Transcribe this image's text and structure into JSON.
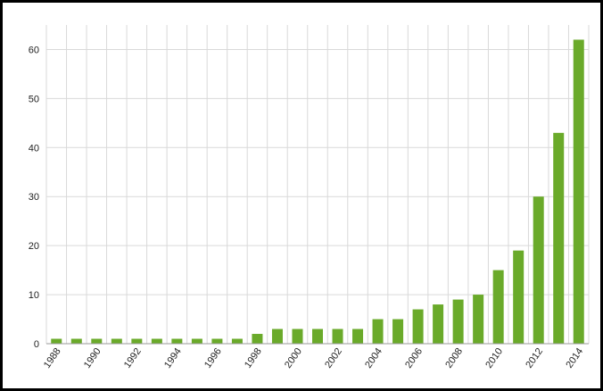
{
  "chart_data": {
    "type": "bar",
    "title": "",
    "xlabel": "",
    "ylabel": "",
    "categories": [
      "1988",
      "1989",
      "1990",
      "1991",
      "1992",
      "1993",
      "1994",
      "1995",
      "1996",
      "1997",
      "1998",
      "1999",
      "2000",
      "2001",
      "2002",
      "2003",
      "2004",
      "2005",
      "2006",
      "2007",
      "2008",
      "2009",
      "2010",
      "2011",
      "2012",
      "2013",
      "2014"
    ],
    "x_tick_labels": [
      "1988",
      "1990",
      "1992",
      "1994",
      "1996",
      "1998",
      "2000",
      "2002",
      "2004",
      "2006",
      "2008",
      "2010",
      "2012",
      "2014"
    ],
    "values": [
      1,
      1,
      1,
      1,
      1,
      1,
      1,
      1,
      1,
      1,
      2,
      3,
      3,
      3,
      3,
      3,
      5,
      5,
      7,
      8,
      9,
      10,
      15,
      19,
      30,
      43,
      62
    ],
    "ylim": [
      0,
      65
    ],
    "y_ticks": [
      0,
      10,
      20,
      30,
      40,
      50,
      60
    ],
    "grid": true,
    "legend": "none",
    "colors": {
      "bar": "#6aaa2a",
      "grid": "#d9d9d9",
      "axis": "#9a9a9a",
      "frame": "#000000"
    }
  }
}
